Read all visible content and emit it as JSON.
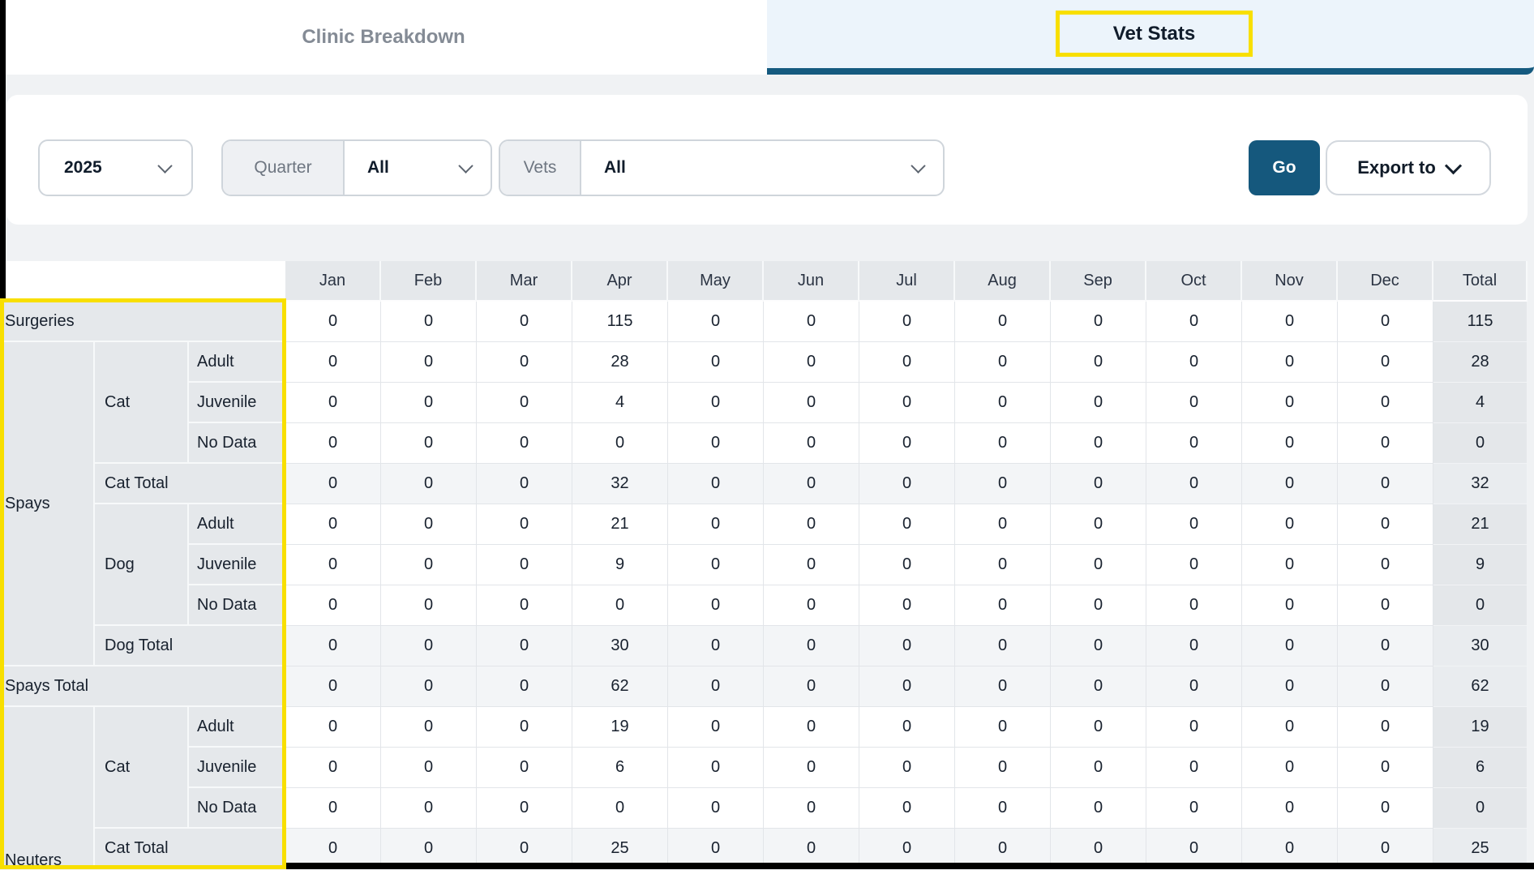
{
  "tabs": [
    {
      "label": "Clinic Breakdown",
      "active": false
    },
    {
      "label": "Vet Stats",
      "active": true
    }
  ],
  "filters": {
    "year": {
      "value": "2025"
    },
    "quarter": {
      "label": "Quarter",
      "value": "All"
    },
    "vets": {
      "label": "Vets",
      "value": "All"
    },
    "go_label": "Go",
    "export_label": "Export to"
  },
  "colors": {
    "accent": "#15587d",
    "active_tab_bg": "#ecf4fb",
    "active_tab_underline": "#155a7f",
    "highlight_yellow": "#f8df00",
    "header_cell_bg": "#e5e8eb",
    "subtotal_row_bg": "#f3f5f7",
    "page_bg": "#f0f2f4"
  },
  "table": {
    "headers": [
      "Jan",
      "Feb",
      "Mar",
      "Apr",
      "May",
      "Jun",
      "Jul",
      "Aug",
      "Sep",
      "Oct",
      "Nov",
      "Dec",
      "Total"
    ],
    "clipped_group_label": "Neuters",
    "rows": [
      {
        "labels": [
          {
            "text": "Surgeries",
            "cls": "l1",
            "colspan": 3
          }
        ],
        "values": [
          0,
          0,
          0,
          115,
          0,
          0,
          0,
          0,
          0,
          0,
          0,
          0
        ],
        "total": 115,
        "shaded": false
      },
      {
        "labels": [
          {
            "text": "Spays",
            "cls": "l1",
            "rowspan": 8
          },
          {
            "text": "Cat",
            "cls": "l2",
            "rowspan": 3
          },
          {
            "text": "Adult",
            "cls": "l3"
          }
        ],
        "values": [
          0,
          0,
          0,
          28,
          0,
          0,
          0,
          0,
          0,
          0,
          0,
          0
        ],
        "total": 28,
        "shaded": false
      },
      {
        "labels": [
          {
            "text": "Juvenile",
            "cls": "l3"
          }
        ],
        "values": [
          0,
          0,
          0,
          4,
          0,
          0,
          0,
          0,
          0,
          0,
          0,
          0
        ],
        "total": 4,
        "shaded": false
      },
      {
        "labels": [
          {
            "text": "No Data",
            "cls": "l3"
          }
        ],
        "values": [
          0,
          0,
          0,
          0,
          0,
          0,
          0,
          0,
          0,
          0,
          0,
          0
        ],
        "total": 0,
        "shaded": false
      },
      {
        "labels": [
          {
            "text": "Cat Total",
            "cls": "l2",
            "colspan": 2
          }
        ],
        "values": [
          0,
          0,
          0,
          32,
          0,
          0,
          0,
          0,
          0,
          0,
          0,
          0
        ],
        "total": 32,
        "shaded": true
      },
      {
        "labels": [
          {
            "text": "Dog",
            "cls": "l2",
            "rowspan": 3
          },
          {
            "text": "Adult",
            "cls": "l3"
          }
        ],
        "values": [
          0,
          0,
          0,
          21,
          0,
          0,
          0,
          0,
          0,
          0,
          0,
          0
        ],
        "total": 21,
        "shaded": false
      },
      {
        "labels": [
          {
            "text": "Juvenile",
            "cls": "l3"
          }
        ],
        "values": [
          0,
          0,
          0,
          9,
          0,
          0,
          0,
          0,
          0,
          0,
          0,
          0
        ],
        "total": 9,
        "shaded": false
      },
      {
        "labels": [
          {
            "text": "No Data",
            "cls": "l3"
          }
        ],
        "values": [
          0,
          0,
          0,
          0,
          0,
          0,
          0,
          0,
          0,
          0,
          0,
          0
        ],
        "total": 0,
        "shaded": false
      },
      {
        "labels": [
          {
            "text": "Dog Total",
            "cls": "l2",
            "colspan": 2
          }
        ],
        "values": [
          0,
          0,
          0,
          30,
          0,
          0,
          0,
          0,
          0,
          0,
          0,
          0
        ],
        "total": 30,
        "shaded": true
      },
      {
        "labels": [
          {
            "text": "Spays Total",
            "cls": "l1",
            "colspan": 3
          }
        ],
        "values": [
          0,
          0,
          0,
          62,
          0,
          0,
          0,
          0,
          0,
          0,
          0,
          0
        ],
        "total": 62,
        "shaded": true
      },
      {
        "labels": [
          {
            "text": "",
            "cls": "l1",
            "rowspan": 4
          },
          {
            "text": "Cat",
            "cls": "l2",
            "rowspan": 3
          },
          {
            "text": "Adult",
            "cls": "l3"
          }
        ],
        "values": [
          0,
          0,
          0,
          19,
          0,
          0,
          0,
          0,
          0,
          0,
          0,
          0
        ],
        "total": 19,
        "shaded": false
      },
      {
        "labels": [
          {
            "text": "Juvenile",
            "cls": "l3"
          }
        ],
        "values": [
          0,
          0,
          0,
          6,
          0,
          0,
          0,
          0,
          0,
          0,
          0,
          0
        ],
        "total": 6,
        "shaded": false
      },
      {
        "labels": [
          {
            "text": "No Data",
            "cls": "l3"
          }
        ],
        "values": [
          0,
          0,
          0,
          0,
          0,
          0,
          0,
          0,
          0,
          0,
          0,
          0
        ],
        "total": 0,
        "shaded": false
      },
      {
        "labels": [
          {
            "text": "Cat Total",
            "cls": "l2",
            "colspan": 2
          }
        ],
        "values": [
          0,
          0,
          0,
          25,
          0,
          0,
          0,
          0,
          0,
          0,
          0,
          0
        ],
        "total": 25,
        "shaded": true
      }
    ]
  }
}
